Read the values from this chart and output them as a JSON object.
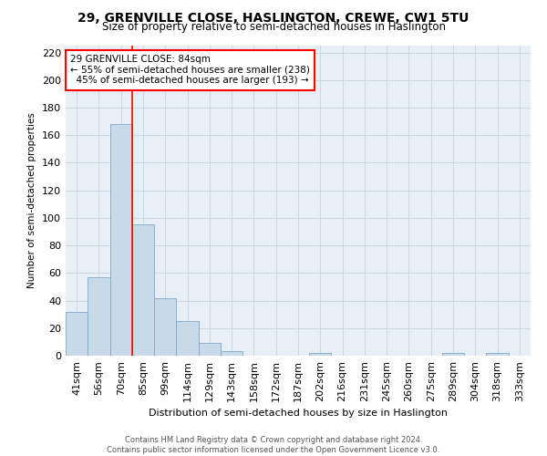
{
  "title": "29, GRENVILLE CLOSE, HASLINGTON, CREWE, CW1 5TU",
  "subtitle": "Size of property relative to semi-detached houses in Haslington",
  "xlabel": "Distribution of semi-detached houses by size in Haslington",
  "ylabel": "Number of semi-detached properties",
  "categories": [
    "41sqm",
    "56sqm",
    "70sqm",
    "85sqm",
    "99sqm",
    "114sqm",
    "129sqm",
    "143sqm",
    "158sqm",
    "172sqm",
    "187sqm",
    "202sqm",
    "216sqm",
    "231sqm",
    "245sqm",
    "260sqm",
    "275sqm",
    "289sqm",
    "304sqm",
    "318sqm",
    "333sqm"
  ],
  "values": [
    32,
    57,
    168,
    95,
    42,
    25,
    9,
    3,
    0,
    0,
    0,
    2,
    0,
    0,
    0,
    0,
    0,
    2,
    0,
    2,
    0
  ],
  "bar_color": "#c9d9e8",
  "bar_edge_color": "#7aaac8",
  "grid_color": "#ccd6e4",
  "background_color": "#e8eef5",
  "vline_x_index": 2.5,
  "annotation_line1": "29 GRENVILLE CLOSE: 84sqm",
  "annotation_line2": "← 55% of semi-detached houses are smaller (238)",
  "annotation_line3": "  45% of semi-detached houses are larger (193) →",
  "ylim": [
    0,
    225
  ],
  "yticks": [
    0,
    20,
    40,
    60,
    80,
    100,
    120,
    140,
    160,
    180,
    200,
    220
  ],
  "footer_line1": "Contains HM Land Registry data © Crown copyright and database right 2024.",
  "footer_line2": "Contains public sector information licensed under the Open Government Licence v3.0."
}
